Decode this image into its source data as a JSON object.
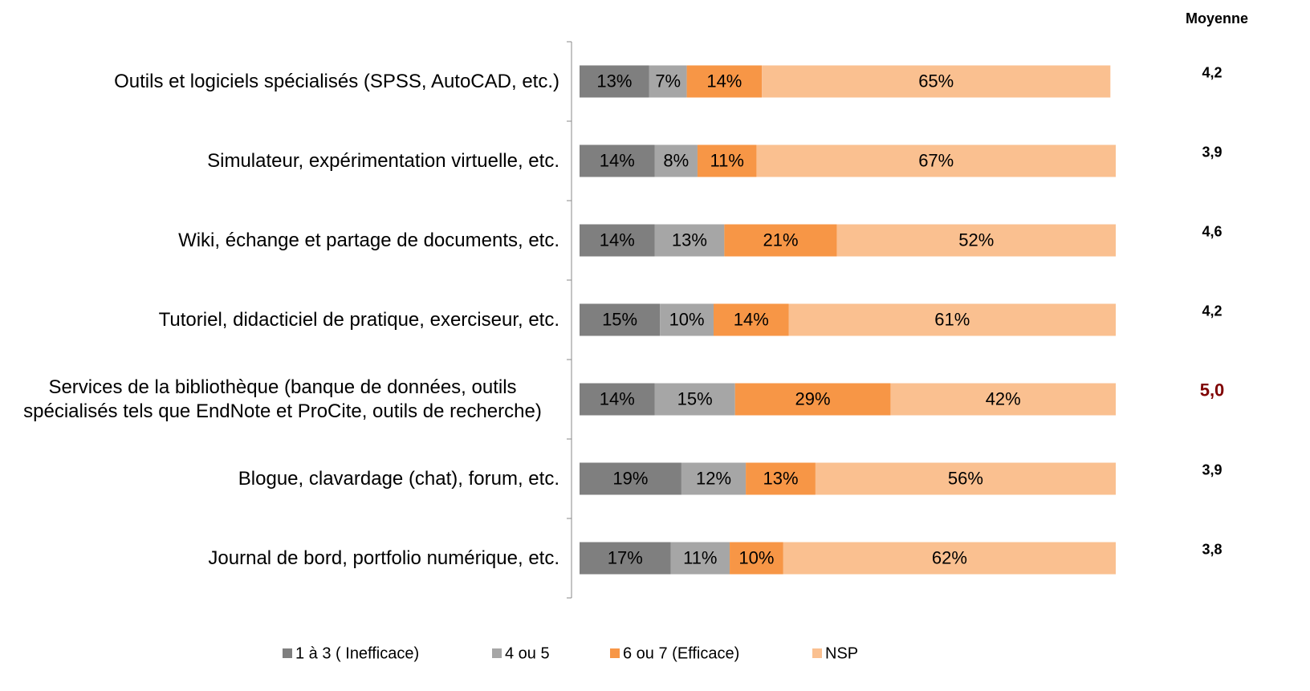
{
  "chart_data": {
    "type": "bar",
    "orientation": "horizontal",
    "stacked": true,
    "categories": [
      "Outils et logiciels spécialisés (SPSS, AutoCAD, etc.)",
      "Simulateur, expérimentation virtuelle, etc.",
      "Wiki, échange et partage de documents, etc.",
      "Tutoriel, didacticiel de pratique, exerciseur, etc.",
      "Services de la bibliothèque (banque de données, outils spécialisés tels que EndNote et ProCite, outils de recherche)",
      "Blogue, clavardage (chat), forum, etc.",
      "Journal de bord, portfolio numérique, etc."
    ],
    "series": [
      {
        "name": "1 à 3 ( Inefficace)",
        "color": "#7f7f7f",
        "values": [
          13,
          14,
          14,
          15,
          14,
          19,
          17
        ],
        "value_labels": [
          "13%",
          "14%",
          "14%",
          "15%",
          "14%",
          "19%",
          "17%"
        ]
      },
      {
        "name": "4 ou 5",
        "color": "#a6a6a6",
        "values": [
          7,
          8,
          13,
          10,
          15,
          12,
          11
        ],
        "value_labels": [
          "7%",
          "8%",
          "13%",
          "10%",
          "15%",
          "12%",
          "11%"
        ]
      },
      {
        "name": "6 ou 7 (Efficace)",
        "color": "#f79646",
        "values": [
          14,
          11,
          21,
          14,
          29,
          13,
          10
        ],
        "value_labels": [
          "14%",
          "11%",
          "21%",
          "14%",
          "29%",
          "13%",
          "10%"
        ]
      },
      {
        "name": "NSP",
        "color": "#fac090",
        "values": [
          65,
          67,
          52,
          61,
          42,
          56,
          62
        ],
        "value_labels": [
          "65%",
          "67%",
          "52%",
          "61%",
          "42%",
          "56%",
          "62%"
        ]
      }
    ],
    "xlim": [
      0,
      100
    ],
    "legend": "bottom",
    "moyenne": {
      "label": "Moyenne",
      "values": [
        4.2,
        3.9,
        4.6,
        4.2,
        5.0,
        3.9,
        3.8
      ],
      "value_labels": [
        "4,2",
        "3,9",
        "4,6",
        "4,2",
        "5,0",
        "3,9",
        "3,8"
      ],
      "colors": [
        "#000000",
        "#000000",
        "#000000",
        "#000000",
        "#7f0000",
        "#000000",
        "#000000"
      ]
    }
  }
}
